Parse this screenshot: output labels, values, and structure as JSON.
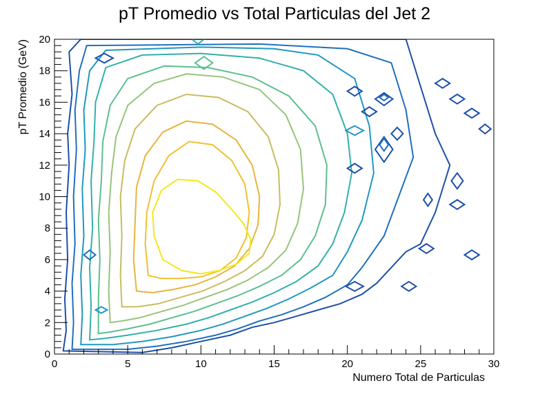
{
  "chart_data": {
    "type": "contour",
    "title": "pT Promedio vs Total Particulas del Jet 2",
    "xlabel": "Numero Total de Particulas",
    "ylabel": "pT Promedio (GeV)",
    "xlim": [
      0,
      30
    ],
    "ylim": [
      0,
      20
    ],
    "xticks": [
      "0",
      "5",
      "10",
      "15",
      "20",
      "25",
      "30"
    ],
    "yticks": [
      "0",
      "2",
      "4",
      "6",
      "8",
      "10",
      "12",
      "14",
      "16",
      "18",
      "20"
    ],
    "grid": false,
    "legend": "none",
    "peak": {
      "x": 10.5,
      "y": 8.0
    },
    "levels": [
      {
        "level": 1,
        "color": "#1d4fa8",
        "points": [
          [
            0.6,
            0.2
          ],
          [
            0.8,
            1.5
          ],
          [
            0.7,
            3.5
          ],
          [
            0.9,
            6
          ],
          [
            0.8,
            9
          ],
          [
            1.0,
            12
          ],
          [
            0.9,
            14
          ],
          [
            1.2,
            16.5
          ],
          [
            1.0,
            19.2
          ],
          [
            1.8,
            20
          ],
          [
            17,
            20
          ],
          [
            22,
            20
          ],
          [
            24,
            20
          ],
          [
            25,
            17
          ],
          [
            26,
            14
          ],
          [
            27,
            12
          ],
          [
            26,
            9
          ],
          [
            25,
            7
          ],
          [
            24,
            6.5
          ],
          [
            23,
            5.5
          ],
          [
            22,
            4.5
          ],
          [
            21,
            3.8
          ],
          [
            19.5,
            3.2
          ],
          [
            18,
            2.8
          ],
          [
            16.5,
            2.4
          ],
          [
            15,
            2
          ],
          [
            13.5,
            1.7
          ],
          [
            12,
            1.2
          ],
          [
            10,
            0.8
          ],
          [
            8,
            0.4
          ],
          [
            6,
            0.1
          ]
        ],
        "closed": true
      },
      {
        "level": 2,
        "color": "#1e6fbe",
        "points": [
          [
            1.2,
            0.3
          ],
          [
            1.3,
            2
          ],
          [
            1.2,
            4.5
          ],
          [
            1.4,
            7
          ],
          [
            1.3,
            10
          ],
          [
            1.5,
            13
          ],
          [
            1.4,
            15.5
          ],
          [
            1.7,
            18
          ],
          [
            2.2,
            19.6
          ],
          [
            14,
            19.7
          ],
          [
            20,
            19.4
          ],
          [
            23,
            18.5
          ],
          [
            24,
            15.5
          ],
          [
            24.5,
            12.5
          ],
          [
            23.5,
            10
          ],
          [
            22.5,
            7.5
          ],
          [
            21,
            5.5
          ],
          [
            20,
            4.4
          ],
          [
            18.5,
            3.6
          ],
          [
            17,
            3
          ],
          [
            15.5,
            2.5
          ],
          [
            14,
            2.1
          ],
          [
            12.5,
            1.6
          ],
          [
            11,
            1.2
          ],
          [
            9,
            0.8
          ],
          [
            7,
            0.5
          ],
          [
            5,
            0.3
          ]
        ],
        "closed": true
      },
      {
        "level": 3,
        "color": "#1f97c0",
        "points": [
          [
            1.8,
            0.6
          ],
          [
            1.9,
            2.5
          ],
          [
            1.8,
            5
          ],
          [
            2.0,
            7.5
          ],
          [
            1.9,
            10.5
          ],
          [
            2.1,
            13
          ],
          [
            2.0,
            15.5
          ],
          [
            2.4,
            18
          ],
          [
            3.5,
            19.3
          ],
          [
            10,
            19.5
          ],
          [
            15,
            19.4
          ],
          [
            18,
            19
          ],
          [
            20.5,
            17.5
          ],
          [
            21.5,
            14.5
          ],
          [
            21.8,
            11.5
          ],
          [
            21,
            8.5
          ],
          [
            20,
            6.5
          ],
          [
            19,
            5
          ],
          [
            17.5,
            4.2
          ],
          [
            16,
            3.5
          ],
          [
            14.5,
            2.9
          ],
          [
            13,
            2.4
          ],
          [
            11.5,
            1.9
          ],
          [
            10,
            1.5
          ],
          [
            8,
            1.1
          ],
          [
            6,
            0.8
          ],
          [
            4,
            0.6
          ]
        ],
        "closed": true
      },
      {
        "level": 4,
        "color": "#30b0a8",
        "points": [
          [
            2.4,
            0.9
          ],
          [
            2.5,
            3
          ],
          [
            2.4,
            5.5
          ],
          [
            2.6,
            8
          ],
          [
            2.5,
            11
          ],
          [
            2.7,
            13.5
          ],
          [
            2.8,
            16
          ],
          [
            3.5,
            18.2
          ],
          [
            6,
            19
          ],
          [
            10,
            19.1
          ],
          [
            14,
            18.8
          ],
          [
            17,
            18
          ],
          [
            19,
            16.5
          ],
          [
            20,
            14
          ],
          [
            20.3,
            11.5
          ],
          [
            19.8,
            9
          ],
          [
            19,
            7
          ],
          [
            18,
            5.6
          ],
          [
            16.5,
            4.6
          ],
          [
            15,
            3.9
          ],
          [
            13.5,
            3.3
          ],
          [
            12,
            2.8
          ],
          [
            10.5,
            2.3
          ],
          [
            9,
            1.9
          ],
          [
            7,
            1.5
          ],
          [
            5,
            1.2
          ],
          [
            3.5,
            1.0
          ]
        ],
        "closed": true
      },
      {
        "level": 5,
        "color": "#5bbf90",
        "points": [
          [
            3.0,
            1.3
          ],
          [
            3.0,
            3.5
          ],
          [
            3.1,
            6
          ],
          [
            3.0,
            8.5
          ],
          [
            3.2,
            11
          ],
          [
            3.3,
            13.5
          ],
          [
            3.8,
            15.8
          ],
          [
            5,
            17.5
          ],
          [
            7.5,
            18.3
          ],
          [
            10.5,
            18.2
          ],
          [
            13.5,
            17.6
          ],
          [
            16,
            16.4
          ],
          [
            17.8,
            14.5
          ],
          [
            18.6,
            12
          ],
          [
            18.5,
            9.5
          ],
          [
            17.8,
            7.5
          ],
          [
            16.8,
            6
          ],
          [
            15.5,
            5
          ],
          [
            14,
            4.3
          ],
          [
            12.5,
            3.7
          ],
          [
            11,
            3.2
          ],
          [
            9.5,
            2.7
          ],
          [
            8,
            2.3
          ],
          [
            6.5,
            1.9
          ],
          [
            5,
            1.6
          ],
          [
            3.8,
            1.4
          ]
        ],
        "closed": true
      },
      {
        "level": 6,
        "color": "#96c47a",
        "points": [
          [
            3.8,
            2.0
          ],
          [
            3.7,
            4
          ],
          [
            3.8,
            6.5
          ],
          [
            3.7,
            9
          ],
          [
            3.9,
            11.5
          ],
          [
            4.2,
            13.8
          ],
          [
            5,
            15.8
          ],
          [
            6.8,
            17.2
          ],
          [
            9,
            17.8
          ],
          [
            11.5,
            17.6
          ],
          [
            14,
            16.8
          ],
          [
            15.8,
            15.2
          ],
          [
            16.8,
            13
          ],
          [
            17,
            10.5
          ],
          [
            16.6,
            8.3
          ],
          [
            15.8,
            6.6
          ],
          [
            14.6,
            5.5
          ],
          [
            13.2,
            4.7
          ],
          [
            11.8,
            4.1
          ],
          [
            10.3,
            3.6
          ],
          [
            8.8,
            3.1
          ],
          [
            7.3,
            2.7
          ],
          [
            5.8,
            2.3
          ],
          [
            4.6,
            2.1
          ]
        ],
        "closed": true
      },
      {
        "level": 7,
        "color": "#c8bc5c",
        "points": [
          [
            4.6,
            3.0
          ],
          [
            4.5,
            5
          ],
          [
            4.6,
            7.5
          ],
          [
            4.5,
            10
          ],
          [
            4.8,
            12.3
          ],
          [
            5.5,
            14.3
          ],
          [
            7,
            15.8
          ],
          [
            9,
            16.5
          ],
          [
            11.2,
            16.3
          ],
          [
            13.2,
            15.4
          ],
          [
            14.6,
            13.8
          ],
          [
            15.3,
            11.7
          ],
          [
            15.4,
            9.5
          ],
          [
            15,
            7.6
          ],
          [
            14.2,
            6.2
          ],
          [
            13,
            5.3
          ],
          [
            11.6,
            4.6
          ],
          [
            10.1,
            4.0
          ],
          [
            8.6,
            3.6
          ],
          [
            7.1,
            3.2
          ],
          [
            5.7,
            3.0
          ]
        ],
        "closed": true
      },
      {
        "level": 8,
        "color": "#e8b43a",
        "points": [
          [
            5.6,
            4.0
          ],
          [
            5.4,
            6
          ],
          [
            5.5,
            8.3
          ],
          [
            5.6,
            10.6
          ],
          [
            6.2,
            12.6
          ],
          [
            7.4,
            14.1
          ],
          [
            9,
            14.8
          ],
          [
            10.8,
            14.6
          ],
          [
            12.4,
            13.6
          ],
          [
            13.5,
            12
          ],
          [
            14,
            10
          ],
          [
            13.9,
            8.2
          ],
          [
            13.3,
            6.7
          ],
          [
            12.3,
            5.6
          ],
          [
            11,
            4.9
          ],
          [
            9.6,
            4.4
          ],
          [
            8.1,
            4.1
          ],
          [
            6.7,
            3.9
          ]
        ],
        "closed": true
      },
      {
        "level": 9,
        "color": "#f0c030",
        "points": [
          [
            6.4,
            5.0
          ],
          [
            6.2,
            7
          ],
          [
            6.3,
            9
          ],
          [
            6.8,
            11
          ],
          [
            7.8,
            12.6
          ],
          [
            9.2,
            13.5
          ],
          [
            10.8,
            13.3
          ],
          [
            12.1,
            12.3
          ],
          [
            13,
            10.8
          ],
          [
            13.3,
            9
          ],
          [
            13.1,
            7.4
          ],
          [
            12.4,
            6.1
          ],
          [
            11.3,
            5.3
          ],
          [
            10,
            4.9
          ],
          [
            8.6,
            4.8
          ],
          [
            7.3,
            4.8
          ]
        ],
        "closed": true
      },
      {
        "level": 10,
        "color": "#f2e81a",
        "points": [
          [
            7.4,
            6.0
          ],
          [
            6.8,
            7.5
          ],
          [
            6.7,
            9
          ],
          [
            7.3,
            10.4
          ],
          [
            8.4,
            11.1
          ],
          [
            9.8,
            11.0
          ],
          [
            11,
            10.3
          ],
          [
            12,
            9.3
          ],
          [
            12.9,
            8.3
          ],
          [
            13.4,
            7.3
          ],
          [
            13.3,
            6.4
          ],
          [
            12.4,
            5.7
          ],
          [
            11.2,
            5.3
          ],
          [
            10,
            5.1
          ],
          [
            8.7,
            5.3
          ]
        ],
        "closed": true
      }
    ],
    "islands": [
      {
        "color": "#1d4fa8",
        "x": 3.4,
        "y": 18.8,
        "rx": 0.6,
        "ry": 0.3
      },
      {
        "color": "#1d4fa8",
        "x": 20.5,
        "y": 4.3,
        "rx": 0.6,
        "ry": 0.3
      },
      {
        "color": "#1d4fa8",
        "x": 24.2,
        "y": 4.3,
        "rx": 0.5,
        "ry": 0.3
      },
      {
        "color": "#1d4fa8",
        "x": 25.4,
        "y": 6.7,
        "rx": 0.5,
        "ry": 0.3
      },
      {
        "color": "#1d4fa8",
        "x": 28.5,
        "y": 6.3,
        "rx": 0.5,
        "ry": 0.3
      },
      {
        "color": "#1d4fa8",
        "x": 27.5,
        "y": 9.5,
        "rx": 0.5,
        "ry": 0.3
      },
      {
        "color": "#1d4fa8",
        "x": 27.5,
        "y": 11.0,
        "rx": 0.4,
        "ry": 0.5
      },
      {
        "color": "#1d4fa8",
        "x": 25.5,
        "y": 9.8,
        "rx": 0.3,
        "ry": 0.4
      },
      {
        "color": "#1d4fa8",
        "x": 28.5,
        "y": 15.3,
        "rx": 0.5,
        "ry": 0.3
      },
      {
        "color": "#1d4fa8",
        "x": 27.5,
        "y": 16.2,
        "rx": 0.5,
        "ry": 0.3
      },
      {
        "color": "#1d4fa8",
        "x": 26.5,
        "y": 17.2,
        "rx": 0.5,
        "ry": 0.3
      },
      {
        "color": "#1d4fa8",
        "x": 29.4,
        "y": 14.3,
        "rx": 0.4,
        "ry": 0.3
      },
      {
        "color": "#1d4fa8",
        "x": 22.5,
        "y": 16.2,
        "rx": 0.6,
        "ry": 0.4
      },
      {
        "color": "#1d4fa8",
        "x": 21.5,
        "y": 15.4,
        "rx": 0.5,
        "ry": 0.3
      },
      {
        "color": "#1d4fa8",
        "x": 20.5,
        "y": 16.7,
        "rx": 0.5,
        "ry": 0.3
      },
      {
        "color": "#1d4fa8",
        "x": 20.5,
        "y": 11.8,
        "rx": 0.5,
        "ry": 0.3
      },
      {
        "color": "#1d4fa8",
        "x": 22.5,
        "y": 13.0,
        "rx": 0.6,
        "ry": 0.8
      },
      {
        "color": "#1d4fa8",
        "x": 23.4,
        "y": 14.0,
        "rx": 0.4,
        "ry": 0.4
      },
      {
        "color": "#1e6fbe",
        "x": 22.5,
        "y": 13.3,
        "rx": 0.3,
        "ry": 0.4
      },
      {
        "color": "#1e6fbe",
        "x": 22.5,
        "y": 16.3,
        "rx": 0.3,
        "ry": 0.2
      },
      {
        "color": "#1e6fbe",
        "x": 2.4,
        "y": 6.3,
        "rx": 0.4,
        "ry": 0.3
      },
      {
        "color": "#1f97c0",
        "x": 20.5,
        "y": 14.2,
        "rx": 0.6,
        "ry": 0.3
      },
      {
        "color": "#1f97c0",
        "x": 3.2,
        "y": 2.8,
        "rx": 0.4,
        "ry": 0.2
      },
      {
        "color": "#30b0a8",
        "x": 9.8,
        "y": 20.0,
        "rx": 0.4,
        "ry": 0.3
      },
      {
        "color": "#5bbf90",
        "x": 10.2,
        "y": 18.5,
        "rx": 0.6,
        "ry": 0.4
      }
    ]
  }
}
